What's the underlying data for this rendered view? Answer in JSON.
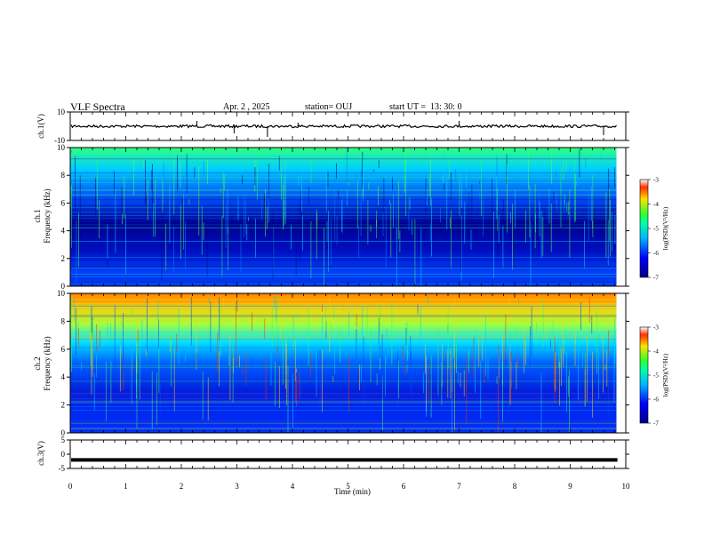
{
  "header": {
    "title": "VLF Spectra",
    "date": "Apr. 2 , 2025",
    "station": "station= OUJ",
    "start": "start UT =  13: 30: 0"
  },
  "panels": {
    "ch1_voltage_label": "ch.1(V)",
    "ch1_label": "ch.1",
    "ch2_label": "ch.2",
    "freq_label": "Frequency (kHz)",
    "ch3_voltage_label": "ch.3(V)",
    "cbar_label": "log(PSD)(V²/Hz)"
  },
  "colors": {
    "spec_low": "#00008a",
    "spec_mid": "#00c8ff",
    "spec_green": "#30ff60",
    "spec_high": "#ff3000"
  },
  "chart_data": [
    {
      "type": "line",
      "name": "ch1-voltage",
      "ylabel": "ch.1(V)",
      "ylim": [
        -10,
        10
      ],
      "yticks": [
        10,
        -10
      ],
      "x_range": [
        0,
        10
      ],
      "approx_level": 0,
      "trace_extent_min": 9.85
    },
    {
      "type": "heatmap",
      "name": "ch1-spectrogram",
      "ylabel": "Frequency (kHz)",
      "ylim": [
        0,
        10
      ],
      "yticks": [
        0,
        2,
        4,
        6,
        8,
        10
      ],
      "x_range": [
        0,
        10
      ],
      "data_extent_min": 9.85,
      "colorbar": {
        "label": "log(PSD)(V²/Hz)",
        "range": [
          -7,
          -3
        ],
        "ticks": [
          -3,
          -4,
          -5,
          -6,
          -7
        ]
      }
    },
    {
      "type": "heatmap",
      "name": "ch2-spectrogram",
      "ylabel": "Frequency (kHz)",
      "ylim": [
        0,
        10
      ],
      "yticks": [
        0,
        2,
        4,
        6,
        8,
        10
      ],
      "x_range": [
        0,
        10
      ],
      "data_extent_min": 9.85,
      "colorbar": {
        "label": "log(PSD)(V²/Hz)",
        "range": [
          -7,
          -3
        ],
        "ticks": [
          -3,
          -4,
          -5,
          -6,
          -7
        ]
      }
    },
    {
      "type": "line",
      "name": "ch3-voltage",
      "ylabel": "ch.3(V)",
      "ylim": [
        -5,
        5
      ],
      "yticks": [
        5,
        0,
        -5
      ],
      "approx_level": -2,
      "x_range": [
        0,
        10
      ],
      "xlabel": "Time (min)",
      "xticks": [
        0,
        1,
        2,
        3,
        4,
        5,
        6,
        7,
        8,
        9,
        10
      ]
    }
  ]
}
